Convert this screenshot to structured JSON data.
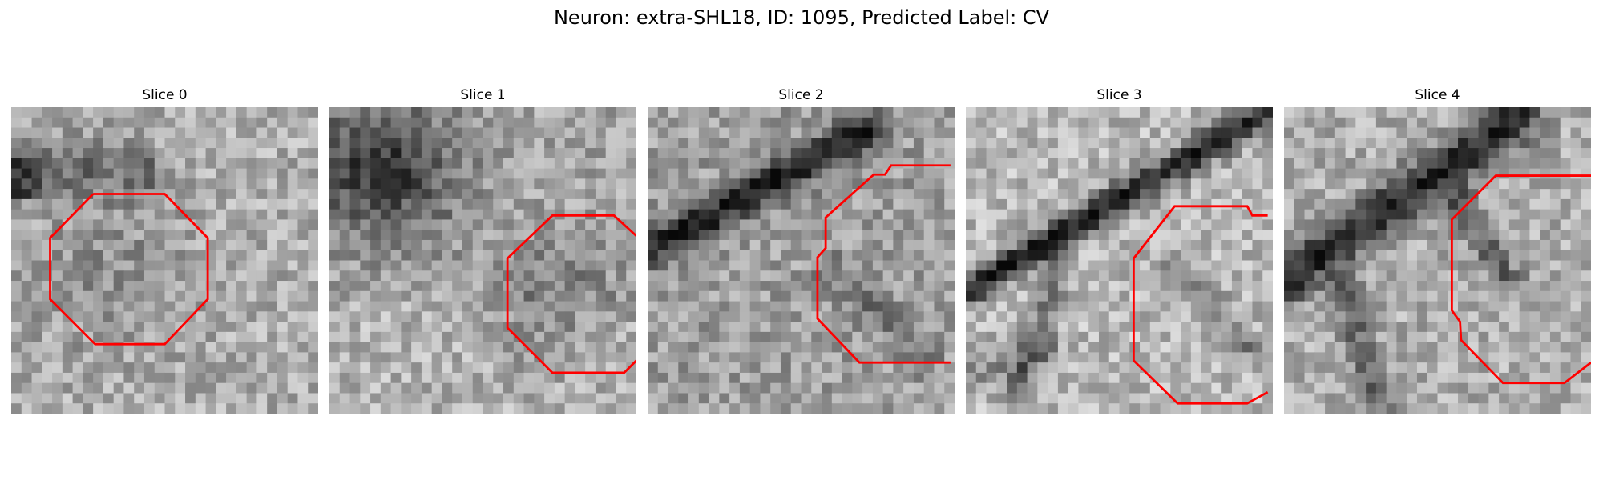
{
  "figure": {
    "title": "Neuron: extra-SHL18, ID: 1095, Predicted Label: CV"
  },
  "panels": [
    {
      "title": "Slice 0"
    },
    {
      "title": "Slice 1"
    },
    {
      "title": "Slice 2"
    },
    {
      "title": "Slice 3"
    },
    {
      "title": "Slice 4"
    }
  ],
  "colors": {
    "contour": "#ff0000",
    "background": "#ffffff"
  }
}
